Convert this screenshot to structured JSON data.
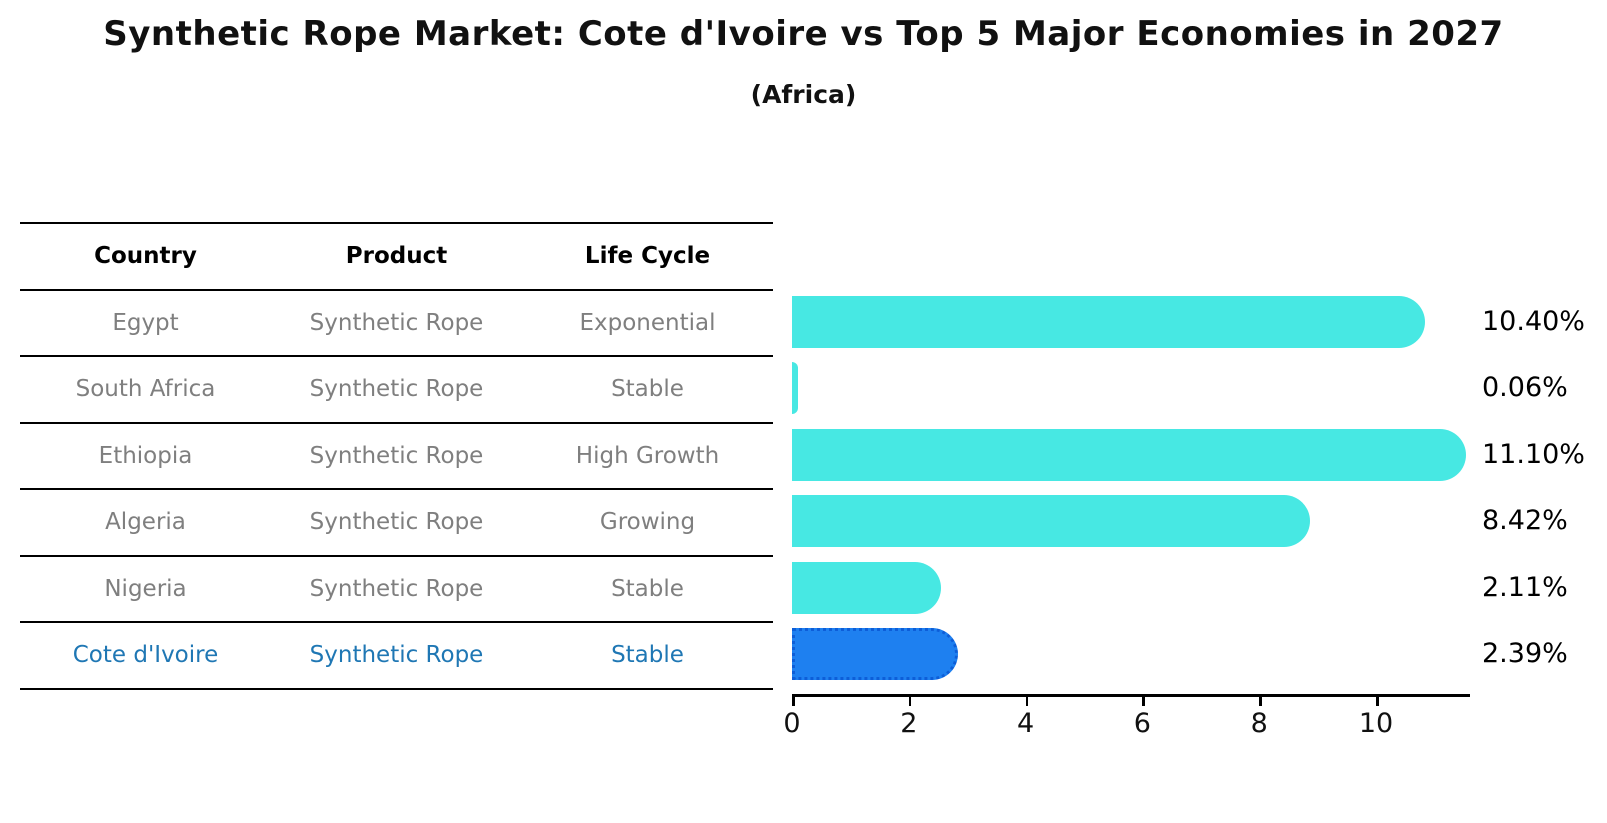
{
  "header": {
    "title": "Synthetic Rope Market: Cote d'Ivoire vs Top 5 Major Economies in 2027",
    "subtitle": "(Africa)"
  },
  "table": {
    "columns": [
      "Country",
      "Product",
      "Life Cycle"
    ],
    "rows": [
      {
        "country": "Egypt",
        "product": "Synthetic Rope",
        "life_cycle": "Exponential",
        "value": 10.4,
        "value_label": "10.40%",
        "highlight": false
      },
      {
        "country": "South Africa",
        "product": "Synthetic Rope",
        "life_cycle": "Stable",
        "value": 0.06,
        "value_label": "0.06%",
        "highlight": false
      },
      {
        "country": "Ethiopia",
        "product": "Synthetic Rope",
        "life_cycle": "High Growth",
        "value": 11.1,
        "value_label": "11.10%",
        "highlight": false
      },
      {
        "country": "Algeria",
        "product": "Synthetic Rope",
        "life_cycle": "Growing",
        "value": 8.42,
        "value_label": "8.42%",
        "highlight": false
      },
      {
        "country": "Nigeria",
        "product": "Synthetic Rope",
        "life_cycle": "Stable",
        "value": 2.11,
        "value_label": "2.11%",
        "highlight": false
      },
      {
        "country": "Cote d'Ivoire",
        "product": "Synthetic Rope",
        "life_cycle": "Stable",
        "value": 2.39,
        "value_label": "2.39%",
        "highlight": true
      }
    ]
  },
  "chart_data": {
    "type": "bar",
    "orientation": "horizontal",
    "title": "Synthetic Rope Market: Cote d'Ivoire vs Top 5 Major Economies in 2027",
    "subtitle": "(Africa)",
    "categories": [
      "Egypt",
      "South Africa",
      "Ethiopia",
      "Algeria",
      "Nigeria",
      "Cote d'Ivoire"
    ],
    "values": [
      10.4,
      0.06,
      11.1,
      8.42,
      2.11,
      2.39
    ],
    "value_labels": [
      "10.40%",
      "0.06%",
      "11.10%",
      "8.42%",
      "2.11%",
      "2.39%"
    ],
    "xlabel": "",
    "ylabel": "",
    "xlim": [
      0,
      11.6
    ],
    "x_ticks": [
      0,
      2,
      4,
      6,
      8,
      10
    ],
    "grid": false,
    "legend": "none",
    "highlight_category": "Cote d'Ivoire"
  },
  "colors": {
    "bar": "#47E8E3",
    "bar_highlight": "#1E80F0",
    "bar_highlight_border": "#0d5ed8",
    "highlight_text": "#1f77b4",
    "row_text": "#7f7f7f",
    "header_text": "#000000",
    "axis": "#000000",
    "background": "#ffffff"
  }
}
